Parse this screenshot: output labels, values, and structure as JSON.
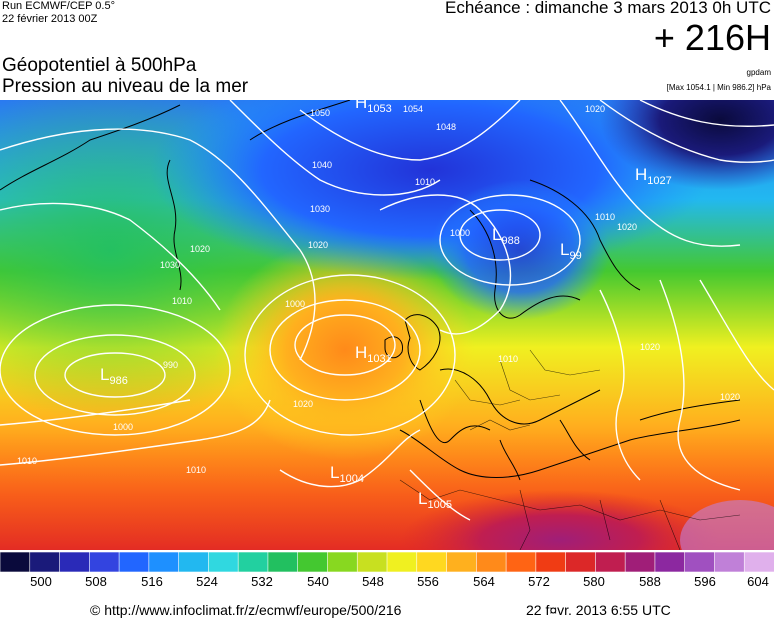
{
  "header": {
    "run": "Run ECMWF/CEP 0.5°",
    "run_date": "22 février 2013 00Z",
    "title_line1": "Géopotentiel à 500hPa",
    "title_line2": "Pression au niveau de la mer",
    "echeance": "Echéance : dimanche 3 mars 2013 0h UTC",
    "hour": "+ 216H",
    "unit": "gpdam",
    "maxmin": "[Max 1054.1 | Min 986.2] hPa"
  },
  "pressure_centers": [
    {
      "type": "L",
      "value": "986"
    },
    {
      "type": "H",
      "value": "1031"
    },
    {
      "type": "H",
      "value": "1053"
    },
    {
      "type": "L",
      "value": "988"
    },
    {
      "type": "L",
      "value": "99"
    },
    {
      "type": "H",
      "value": "1027"
    },
    {
      "type": "L",
      "value": "1004"
    },
    {
      "type": "L",
      "value": "1005"
    }
  ],
  "isobar_labels": [
    "1000",
    "1010",
    "1020",
    "1030",
    "1040",
    "1048",
    "1050",
    "1054",
    "1010",
    "1000",
    "1020",
    "1030",
    "990",
    "1000",
    "1010",
    "1020",
    "1010",
    "1020",
    "1010",
    "1020",
    "1010",
    "1020",
    "1020"
  ],
  "colorbar": {
    "ticks": [
      "500",
      "508",
      "516",
      "524",
      "532",
      "540",
      "548",
      "556",
      "564",
      "572",
      "580",
      "588",
      "596",
      "604"
    ],
    "colors": [
      "#0a0a3c",
      "#1a1a7a",
      "#2a2ab8",
      "#3344e0",
      "#2266ff",
      "#1e90ff",
      "#22b8f0",
      "#30d8e0",
      "#22d0a0",
      "#22c060",
      "#44c830",
      "#88d820",
      "#c8e020",
      "#f0f020",
      "#ffd820",
      "#ffb01e",
      "#ff8a1a",
      "#ff6414",
      "#f03c14",
      "#dc2828",
      "#c01e50",
      "#a01e78",
      "#8c28a0",
      "#a050c0",
      "#c080d8",
      "#e0b0ec"
    ]
  },
  "footer": {
    "url": "© http://www.infoclimat.fr/z/ecmwf/europe/500/216",
    "generated": "22 f¤vr. 2013  6:55 UTC"
  }
}
